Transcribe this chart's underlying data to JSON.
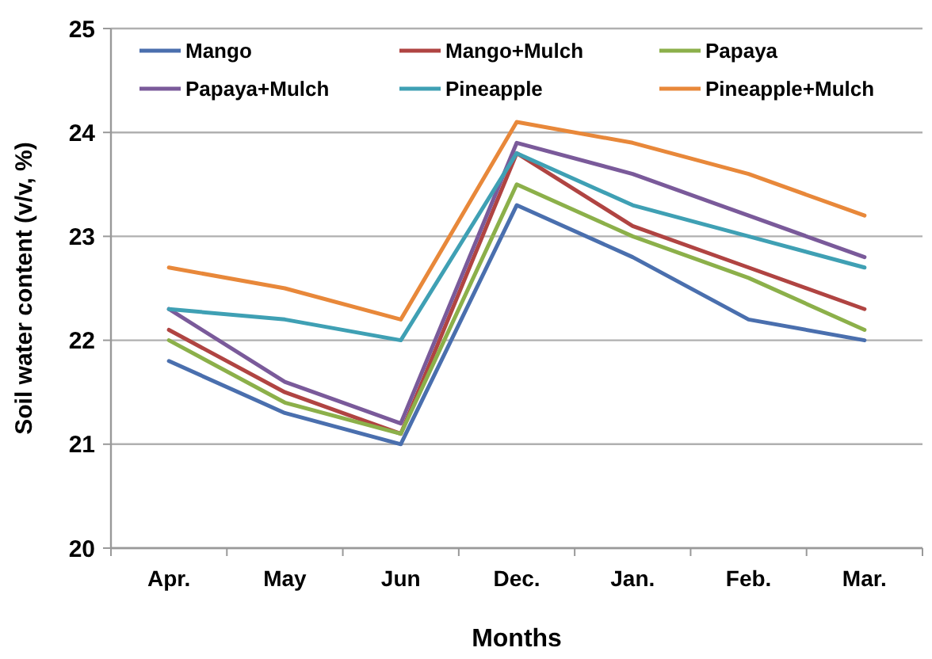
{
  "chart_data": {
    "type": "line",
    "xlabel": "Months",
    "ylabel": "Soil water content (v/v, %)",
    "categories": [
      "Apr.",
      "May",
      "Jun",
      "Dec.",
      "Jan.",
      "Feb.",
      "Mar."
    ],
    "ylim": [
      20,
      25
    ],
    "yticks": [
      20,
      21,
      22,
      23,
      24,
      25
    ],
    "grid": "y",
    "legend": "top",
    "marker": "none",
    "line_style": "solid",
    "series": [
      {
        "name": "Mango",
        "color": "#4a6fae",
        "values": [
          21.8,
          21.3,
          21.0,
          23.3,
          22.8,
          22.2,
          22.0
        ]
      },
      {
        "name": "Mango+Mulch",
        "color": "#b04442",
        "values": [
          22.1,
          21.5,
          21.1,
          23.8,
          23.1,
          22.7,
          22.3
        ]
      },
      {
        "name": "Papaya",
        "color": "#8cb04a",
        "values": [
          22.0,
          21.4,
          21.1,
          23.5,
          23.0,
          22.6,
          22.1
        ]
      },
      {
        "name": "Papaya+Mulch",
        "color": "#7a5a9a",
        "values": [
          22.3,
          21.6,
          21.2,
          23.9,
          23.6,
          23.2,
          22.8
        ]
      },
      {
        "name": "Pineapple",
        "color": "#3fa0b4",
        "values": [
          22.3,
          22.2,
          22.0,
          23.8,
          23.3,
          23.0,
          22.7
        ]
      },
      {
        "name": "Pineapple+Mulch",
        "color": "#e8883a",
        "values": [
          22.7,
          22.5,
          22.2,
          24.1,
          23.9,
          23.6,
          23.2
        ]
      }
    ]
  }
}
